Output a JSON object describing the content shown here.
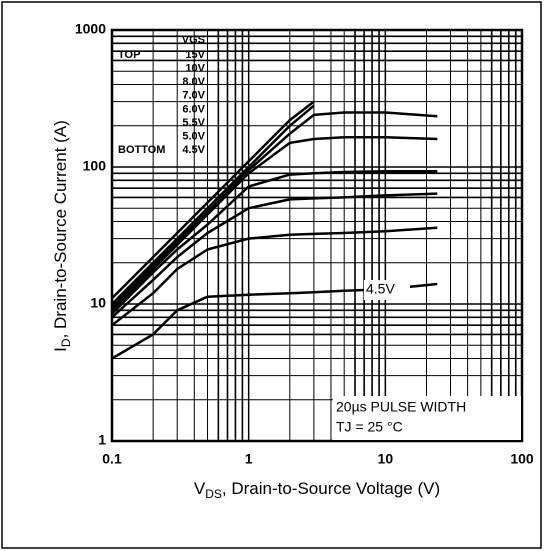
{
  "chart_data": {
    "type": "line",
    "xlabel": {
      "symbol": "V",
      "sub": "DS",
      "text": ", Drain-to-Source Voltage (V)"
    },
    "ylabel": {
      "symbol": "I",
      "sub": "D",
      "text": ",  Drain-to-Source Current (A)"
    },
    "legend_title": "VGS",
    "legend_top": "TOP",
    "legend_bottom": "BOTTOM",
    "annotations": [
      "4.5V",
      "20µs PULSE WIDTH",
      "TJ = 25 °C"
    ],
    "x": [
      0.1,
      0.2,
      0.3,
      0.5,
      1,
      2,
      3,
      5,
      10,
      24
    ],
    "series": [
      {
        "name": "15V",
        "color": "#000000",
        "values": [
          11,
          22,
          33,
          55,
          110,
          220,
          300,
          null,
          null,
          null
        ]
      },
      {
        "name": "10V",
        "color": "#000000",
        "values": [
          10,
          20,
          30,
          50,
          100,
          200,
          280,
          null,
          null,
          null
        ]
      },
      {
        "name": "8.0V",
        "color": "#000000",
        "values": [
          9.5,
          19,
          28.5,
          47,
          95,
          175,
          240,
          250,
          250,
          235
        ]
      },
      {
        "name": "7.0V",
        "color": "#000000",
        "values": [
          9,
          18,
          27,
          45,
          90,
          150,
          160,
          165,
          165,
          160
        ]
      },
      {
        "name": "6.0V",
        "color": "#000000",
        "values": [
          8.5,
          17,
          25,
          38,
          72,
          88,
          90,
          92,
          93,
          93
        ]
      },
      {
        "name": "5.5V",
        "color": "#000000",
        "values": [
          8,
          15,
          22,
          33,
          50,
          58,
          59,
          60,
          62,
          64
        ]
      },
      {
        "name": "5.0V",
        "color": "#000000",
        "values": [
          7,
          12,
          18,
          25,
          30,
          32,
          32.5,
          33,
          34,
          36
        ]
      },
      {
        "name": "4.5V",
        "color": "#000000",
        "values": [
          4,
          6,
          9,
          11.3,
          11.7,
          12,
          12.2,
          12.5,
          12.8,
          14
        ]
      }
    ],
    "xlim": [
      0.1,
      100
    ],
    "ylim": [
      1,
      1000
    ],
    "xticks": [
      0.1,
      1,
      10,
      100
    ],
    "yticks": [
      1,
      10,
      100,
      1000
    ],
    "xscale": "log",
    "yscale": "log",
    "grid": true,
    "minor_grid": true
  }
}
